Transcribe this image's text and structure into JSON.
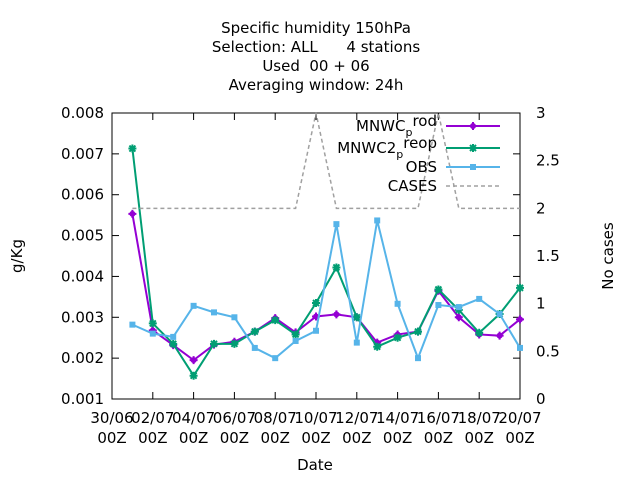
{
  "chart_data": {
    "type": "line",
    "title_lines": [
      "Specific humidity 150hPa",
      "Selection: ALL      4 stations",
      "Used  00 + 06",
      "Averaging window: 24h"
    ],
    "xlabel": "Date",
    "ylabel": "g/Kg",
    "y2label": "No cases",
    "x_range_days": [
      30,
      50
    ],
    "ylim": [
      0.001,
      0.008
    ],
    "y2lim": [
      0,
      3
    ],
    "x_ticks": [
      {
        "day": 30,
        "line1": "30/06",
        "line2": "00Z"
      },
      {
        "day": 32,
        "line1": "02/07",
        "line2": "00Z"
      },
      {
        "day": 34,
        "line1": "04/07",
        "line2": "00Z"
      },
      {
        "day": 36,
        "line1": "06/07",
        "line2": "00Z"
      },
      {
        "day": 38,
        "line1": "08/07",
        "line2": "00Z"
      },
      {
        "day": 40,
        "line1": "10/07",
        "line2": "00Z"
      },
      {
        "day": 42,
        "line1": "12/07",
        "line2": "00Z"
      },
      {
        "day": 44,
        "line1": "14/07",
        "line2": "00Z"
      },
      {
        "day": 46,
        "line1": "16/07",
        "line2": "00Z"
      },
      {
        "day": 48,
        "line1": "18/07",
        "line2": "00Z"
      },
      {
        "day": 50,
        "line1": "20/07",
        "line2": "00Z"
      }
    ],
    "y_ticks": [
      "0.001",
      "0.002",
      "0.003",
      "0.004",
      "0.005",
      "0.006",
      "0.007",
      "0.008"
    ],
    "y2_ticks": [
      "0",
      "0.5",
      "1",
      "1.5",
      "2",
      "2.5",
      "3"
    ],
    "grid": false,
    "legend_position": "top-right",
    "series": [
      {
        "name": "MNWC_prod",
        "legend_main": "MNWC",
        "legend_sub": "p",
        "legend_rest": "rod",
        "color": "#9400d3",
        "marker": "cross",
        "axis": "y",
        "x": [
          31,
          32,
          33,
          34,
          35,
          36,
          37,
          38,
          39,
          40,
          41,
          42,
          43,
          44,
          45,
          46,
          47,
          48,
          49,
          50
        ],
        "y": [
          0.00553,
          0.00268,
          0.00232,
          0.00195,
          0.00233,
          0.0024,
          0.00265,
          0.00298,
          0.00263,
          0.00302,
          0.00307,
          0.003,
          0.00238,
          0.00258,
          0.00265,
          0.00365,
          0.003,
          0.00258,
          0.00255,
          0.00295
        ]
      },
      {
        "name": "MNWC2_preop",
        "legend_main": "MNWC2",
        "legend_sub": "p",
        "legend_rest": "reop",
        "color": "#009e73",
        "marker": "star",
        "axis": "y",
        "x": [
          31,
          32,
          33,
          34,
          35,
          36,
          37,
          38,
          39,
          40,
          41,
          42,
          43,
          44,
          45,
          46,
          47,
          48,
          49,
          50
        ],
        "y": [
          0.00713,
          0.00285,
          0.00235,
          0.00157,
          0.00235,
          0.00235,
          0.00265,
          0.00293,
          0.00258,
          0.00335,
          0.00422,
          0.003,
          0.00228,
          0.0025,
          0.00265,
          0.00368,
          0.00318,
          0.00262,
          0.00308,
          0.00372
        ]
      },
      {
        "name": "OBS",
        "legend_main": "OBS",
        "color": "#56b4e9",
        "marker": "box",
        "axis": "y",
        "x": [
          31,
          32,
          33,
          34,
          35,
          36,
          37,
          38,
          39,
          40,
          41,
          42,
          43,
          44,
          45,
          46,
          47,
          48,
          49,
          50
        ],
        "y": [
          0.00282,
          0.0026,
          0.00252,
          0.00328,
          0.00312,
          0.003,
          0.00225,
          0.002,
          0.00242,
          0.00267,
          0.00528,
          0.00238,
          0.00537,
          0.00333,
          0.002,
          0.0033,
          0.00325,
          0.00345,
          0.00308,
          0.00225
        ]
      },
      {
        "name": "CASES",
        "legend_main": "CASES",
        "color": "#a0a0a0",
        "marker": "none",
        "dashed": true,
        "axis": "y2",
        "x": [
          31,
          32,
          33,
          34,
          35,
          36,
          37,
          38,
          39,
          40,
          41,
          42,
          43,
          44,
          45,
          46,
          47,
          48,
          49,
          50
        ],
        "y": [
          2,
          2,
          2,
          2,
          2,
          2,
          2,
          2,
          2,
          3,
          2,
          2,
          2,
          2,
          2,
          3,
          2,
          2,
          2,
          2
        ]
      }
    ]
  }
}
